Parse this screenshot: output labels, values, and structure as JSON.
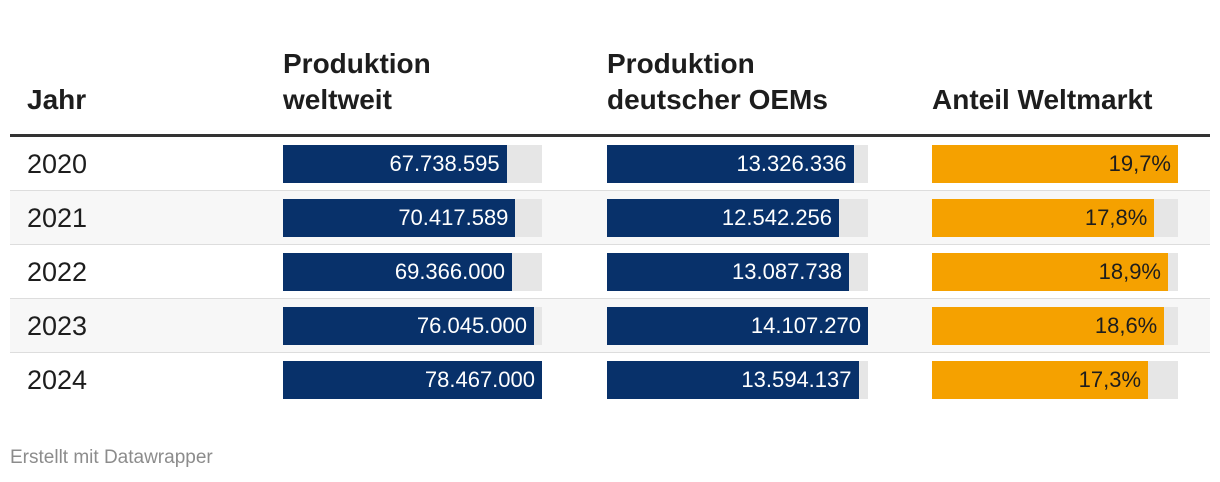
{
  "colors": {
    "primary_bar": "#08316a",
    "share_bar": "#f5a100",
    "bar_track": "#e6e6e6",
    "header_rule": "#333333"
  },
  "chart_data": {
    "type": "table",
    "columns": [
      [
        "Jahr"
      ],
      [
        "Produktion",
        "weltweit"
      ],
      [
        "Produktion",
        "deutscher OEMs"
      ],
      [
        "Anteil Weltmarkt"
      ]
    ],
    "rows": [
      {
        "year": "2020",
        "world": 67738595,
        "world_label": "67.738.595",
        "oems": 13326336,
        "oems_label": "13.326.336",
        "share": 19.7,
        "share_label": "19,7%"
      },
      {
        "year": "2021",
        "world": 70417589,
        "world_label": "70.417.589",
        "oems": 12542256,
        "oems_label": "12.542.256",
        "share": 17.8,
        "share_label": "17,8%"
      },
      {
        "year": "2022",
        "world": 69366000,
        "world_label": "69.366.000",
        "oems": 13087738,
        "oems_label": "13.087.738",
        "share": 18.9,
        "share_label": "18,9%"
      },
      {
        "year": "2023",
        "world": 76045000,
        "world_label": "76.045.000",
        "oems": 14107270,
        "oems_label": "14.107.270",
        "share": 18.6,
        "share_label": "18,6%"
      },
      {
        "year": "2024",
        "world": 78467000,
        "world_label": "78.467.000",
        "oems": 13594137,
        "oems_label": "13.594.137",
        "share": 17.3,
        "share_label": "17,3%"
      }
    ]
  },
  "footer": {
    "credit": "Erstellt mit Datawrapper"
  }
}
